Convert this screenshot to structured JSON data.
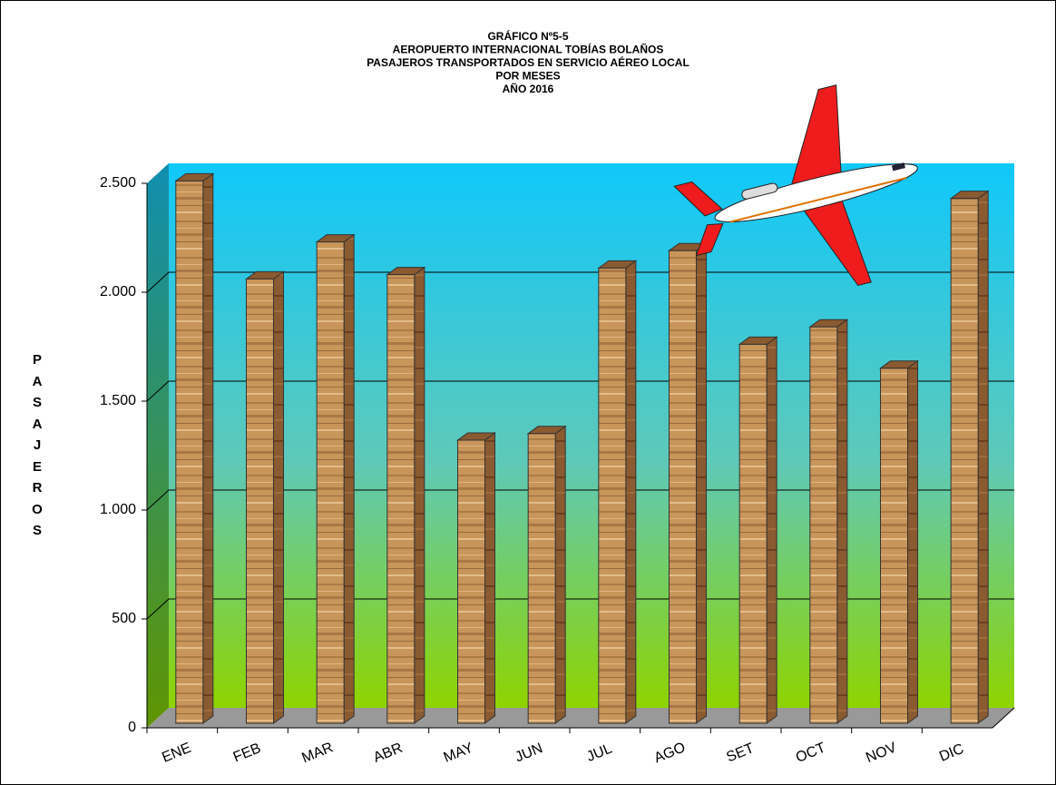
{
  "chart_data": {
    "type": "bar",
    "title": [
      "GRÁFICO Nº5-5",
      "AEROPUERTO INTERNACIONAL TOBÍAS BOLAÑOS",
      "PASAJEROS TRANSPORTADOS EN SERVICIO AÉREO LOCAL",
      "POR MESES",
      "AÑO 2016"
    ],
    "y_label": "PASAJEROS",
    "categories": [
      "ENE",
      "FEB",
      "MAR",
      "ABR",
      "MAY",
      "JUN",
      "JUL",
      "AGO",
      "SET",
      "OCT",
      "NOV",
      "DIC"
    ],
    "values": [
      2490,
      2040,
      2210,
      2060,
      1300,
      1330,
      2090,
      2170,
      1740,
      1820,
      1630,
      2410
    ],
    "color": "#c8955a",
    "ylim": [
      0,
      2500
    ],
    "yticks": [
      0,
      500,
      {
        "value": 1000,
        "label": "1.000"
      },
      {
        "value": 1500,
        "label": "1.500"
      },
      {
        "value": 2000,
        "label": "2.000"
      },
      {
        "value": 2500,
        "label": "2.500"
      }
    ],
    "grid": true
  }
}
